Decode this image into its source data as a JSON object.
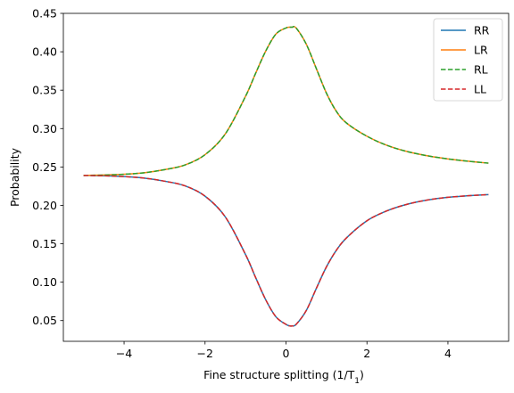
{
  "chart_data": {
    "type": "line",
    "title": "",
    "xlabel": "Fine structure splitting (1/T",
    "xlabel_sub": "1",
    "xlabel_suffix": ")",
    "ylabel": "Probability",
    "xlim": [
      -5.5,
      5.5
    ],
    "ylim": [
      0.023,
      0.45
    ],
    "xticks": [
      -4,
      -2,
      0,
      2,
      4
    ],
    "xtick_labels": [
      "−4",
      "−2",
      "0",
      "2",
      "4"
    ],
    "yticks": [
      0.05,
      0.1,
      0.15,
      0.2,
      0.25,
      0.3,
      0.35,
      0.4,
      0.45
    ],
    "ytick_labels": [
      "0.05",
      "0.10",
      "0.15",
      "0.20",
      "0.25",
      "0.30",
      "0.35",
      "0.40",
      "0.45"
    ],
    "grid": false,
    "legend_position": "top-right",
    "x": [
      -5.0,
      -4.5,
      -4.0,
      -3.5,
      -3.0,
      -2.5,
      -2.0,
      -1.5,
      -1.0,
      -0.75,
      -0.5,
      -0.25,
      0.0,
      0.1,
      0.15,
      0.25,
      0.5,
      0.75,
      1.0,
      1.25,
      1.5,
      2.0,
      2.5,
      3.0,
      3.5,
      4.0,
      4.5,
      5.0
    ],
    "series": [
      {
        "name": "RR",
        "color": "#1f77b4",
        "dash": "solid",
        "values": [
          0.239,
          0.2385,
          0.2375,
          0.2355,
          0.2315,
          0.2255,
          0.212,
          0.185,
          0.136,
          0.106,
          0.077,
          0.055,
          0.045,
          0.043,
          0.043,
          0.045,
          0.063,
          0.092,
          0.12,
          0.142,
          0.158,
          0.18,
          0.193,
          0.2015,
          0.207,
          0.2105,
          0.2125,
          0.214
        ]
      },
      {
        "name": "LR",
        "color": "#ff7f0e",
        "dash": "solid",
        "values": [
          0.239,
          0.2395,
          0.2405,
          0.2425,
          0.2465,
          0.2525,
          0.266,
          0.293,
          0.342,
          0.372,
          0.401,
          0.423,
          0.431,
          0.432,
          0.432,
          0.431,
          0.41,
          0.378,
          0.346,
          0.322,
          0.307,
          0.29,
          0.278,
          0.27,
          0.2645,
          0.2605,
          0.2575,
          0.255
        ]
      },
      {
        "name": "RL",
        "color": "#2ca02c",
        "dash": "dashed",
        "values": [
          0.239,
          0.2395,
          0.2405,
          0.2425,
          0.2465,
          0.2525,
          0.266,
          0.293,
          0.342,
          0.372,
          0.401,
          0.423,
          0.431,
          0.432,
          0.432,
          0.431,
          0.41,
          0.378,
          0.346,
          0.322,
          0.307,
          0.29,
          0.278,
          0.27,
          0.2645,
          0.2605,
          0.2575,
          0.255
        ]
      },
      {
        "name": "LL",
        "color": "#d62728",
        "dash": "dashed",
        "values": [
          0.239,
          0.2385,
          0.2375,
          0.2355,
          0.2315,
          0.2255,
          0.212,
          0.185,
          0.136,
          0.106,
          0.077,
          0.055,
          0.045,
          0.043,
          0.043,
          0.045,
          0.063,
          0.092,
          0.12,
          0.142,
          0.158,
          0.18,
          0.193,
          0.2015,
          0.207,
          0.2105,
          0.2125,
          0.214
        ]
      }
    ]
  }
}
